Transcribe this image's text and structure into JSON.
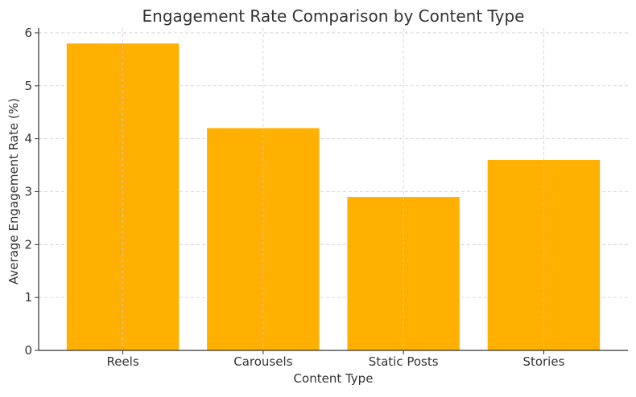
{
  "chart_data": {
    "type": "bar",
    "title": "Engagement Rate Comparison by Content Type",
    "xlabel": "Content Type",
    "ylabel": "Average Engagement Rate (%)",
    "categories": [
      "Reels",
      "Carousels",
      "Static Posts",
      "Stories"
    ],
    "values": [
      5.8,
      4.2,
      2.9,
      3.6
    ],
    "ylim": [
      0,
      6.09
    ],
    "yticks": [
      0,
      1,
      2,
      3,
      4,
      5,
      6
    ],
    "grid": true,
    "bar_color": "#FFB000"
  }
}
